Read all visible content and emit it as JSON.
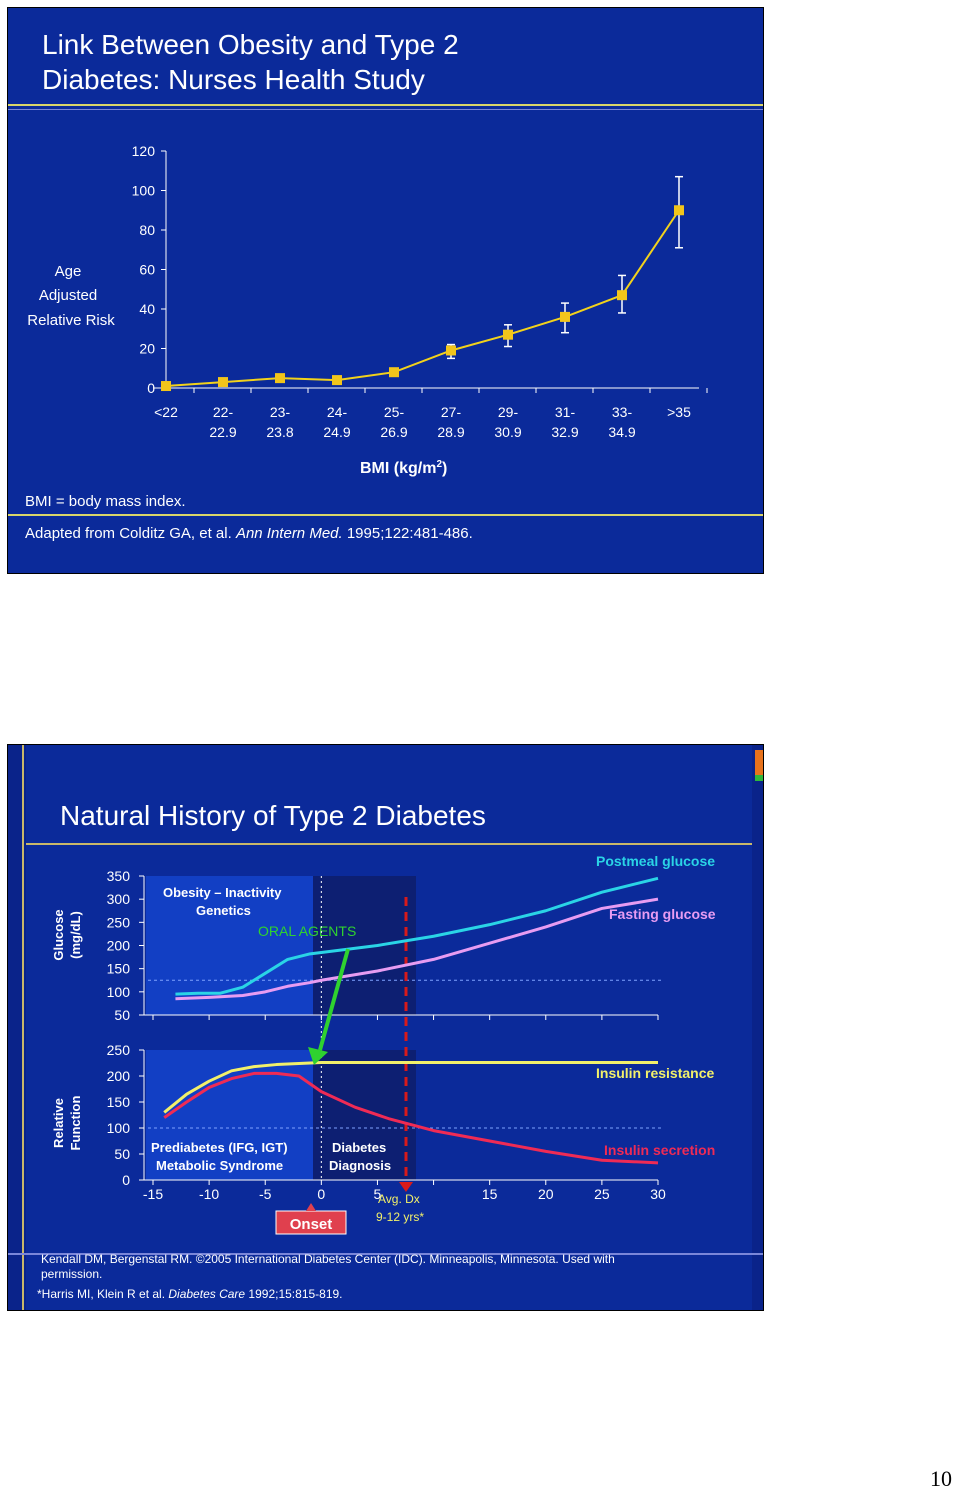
{
  "page_number": "10",
  "slide1": {
    "title_line1": "Link Between Obesity and Type 2",
    "title_line2": "Diabetes: Nurses Health Study",
    "ylabel_lines": [
      "Age",
      "Adjusted",
      "Relative Risk"
    ],
    "xlabel": "BMI (kg/m",
    "xlabel_sup": "2",
    "xlabel_close": ")",
    "footnote": "BMI = body mass index.",
    "citation_prefix": "Adapted from Colditz GA, et al. ",
    "citation_journal": "Ann Intern Med.",
    "citation_suffix": " 1995;122:481-486.",
    "colors": {
      "background": "#0b2a9a",
      "line": "#f2d21b",
      "marker": "#f2c51b",
      "rule": "#d9d56a"
    }
  },
  "slide2": {
    "title": "Natural History of Type 2 Diabetes",
    "top_ylabel_lines": [
      "Glucose",
      "(mg/dL)"
    ],
    "bottom_ylabel_lines": [
      "Relative",
      "Function"
    ],
    "top_left_lines": [
      "Obesity – Inactivity",
      "Genetics"
    ],
    "oral_agents": "ORAL AGENTS",
    "prediabetes_lines": [
      "Prediabetes (IFG, IGT)",
      "Metabolic Syndrome"
    ],
    "diagnosis_lines": [
      "Diabetes",
      "Diagnosis"
    ],
    "avg_dx_lines": [
      "Avg. Dx",
      "9-12 yrs*"
    ],
    "onset": "Onset",
    "footer_lines": [
      "Kendall DM, Bergenstal RM. ©2005 International Diabetes Center (IDC). Minneapolis, Minnesota. Used with",
      "permission."
    ],
    "footer2_prefix": "*Harris MI, Klein R et al. ",
    "footer2_journal": "Diabetes Care",
    "footer2_suffix": " 1992;15:815-819.",
    "colors": {
      "background": "#0b2a9a",
      "postmeal": "#2ad4e6",
      "fasting": "#e79cf2",
      "insulin_resistance": "#f2f06a",
      "insulin_secretion": "#ef2b55",
      "oral_agents": "#2fd22f",
      "dx_line": "#d81a1a"
    }
  },
  "chart_data": [
    {
      "type": "line",
      "title": "Link Between Obesity and Type 2 Diabetes: Nurses Health Study",
      "xlabel": "BMI (kg/m2)",
      "ylabel": "Age Adjusted Relative Risk",
      "categories": [
        "<22",
        "22-\n22.9",
        "23-\n23.8",
        "24-\n24.9",
        "25-\n26.9",
        "27-\n28.9",
        "29-\n30.9",
        "31-\n32.9",
        "33-\n34.9",
        ">35"
      ],
      "values": [
        1,
        3,
        5,
        4,
        8,
        19,
        27,
        36,
        47,
        90
      ],
      "error_low": [
        null,
        null,
        null,
        null,
        null,
        15,
        21,
        28,
        38,
        71
      ],
      "error_high": [
        null,
        null,
        null,
        null,
        null,
        22,
        32,
        43,
        57,
        107
      ],
      "ylim": [
        0,
        120
      ],
      "yticks": [
        0,
        20,
        40,
        60,
        80,
        100,
        120
      ],
      "grid": false
    },
    {
      "type": "line",
      "title": "Natural History of Type 2 Diabetes",
      "panel": "glucose",
      "ylabel": "Glucose (mg/dL)",
      "ylim": [
        50,
        350
      ],
      "yticks": [
        50,
        100,
        150,
        200,
        250,
        300,
        350
      ],
      "xlim": [
        -15,
        30
      ],
      "reference_line": 125,
      "series": [
        {
          "name": "Postmeal glucose",
          "x": [
            -13,
            -11,
            -9,
            -7,
            -5,
            -3,
            -1,
            0,
            5,
            10,
            15,
            20,
            25,
            30
          ],
          "y": [
            95,
            97,
            97,
            110,
            140,
            170,
            182,
            185,
            200,
            220,
            245,
            275,
            315,
            345
          ]
        },
        {
          "name": "Fasting glucose",
          "x": [
            -13,
            -10,
            -7,
            -5,
            -3,
            -1,
            0,
            5,
            10,
            15,
            20,
            25,
            30
          ],
          "y": [
            85,
            88,
            92,
            100,
            112,
            120,
            125,
            145,
            170,
            205,
            240,
            280,
            300
          ]
        }
      ]
    },
    {
      "type": "line",
      "title": "Natural History of Type 2 Diabetes",
      "panel": "relative_function",
      "ylabel": "Relative Function",
      "ylim": [
        0,
        250
      ],
      "yticks": [
        0,
        50,
        100,
        150,
        200,
        250
      ],
      "xlim": [
        -15,
        30
      ],
      "xticks": [
        -15,
        -10,
        -5,
        0,
        5,
        15,
        20,
        25,
        30
      ],
      "reference_line": 100,
      "series": [
        {
          "name": "Insulin resistance",
          "x": [
            -14,
            -12,
            -10,
            -8,
            -6,
            -4,
            -2,
            0,
            10,
            20,
            30
          ],
          "y": [
            130,
            165,
            190,
            210,
            218,
            222,
            224,
            226,
            226,
            226,
            226
          ]
        },
        {
          "name": "Insulin secretion",
          "x": [
            -14,
            -12,
            -10,
            -8,
            -6,
            -4,
            -2,
            0,
            3,
            6,
            10,
            15,
            20,
            25,
            30
          ],
          "y": [
            120,
            150,
            178,
            195,
            205,
            205,
            200,
            170,
            140,
            118,
            95,
            75,
            55,
            38,
            33
          ]
        }
      ]
    }
  ]
}
